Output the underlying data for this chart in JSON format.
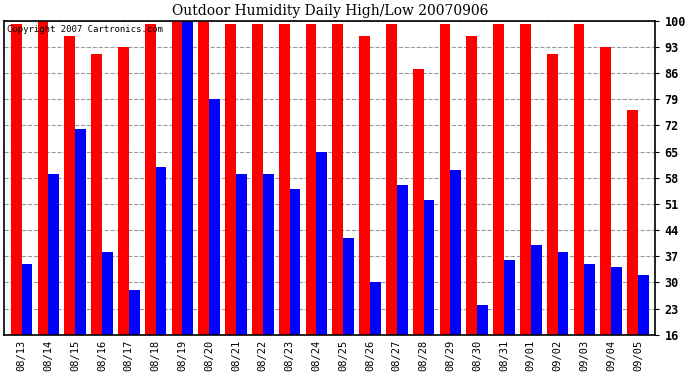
{
  "title": "Outdoor Humidity Daily High/Low 20070906",
  "copyright": "Copyright 2007 Cartronics.com",
  "dates": [
    "08/13",
    "08/14",
    "08/15",
    "08/16",
    "08/17",
    "08/18",
    "08/19",
    "08/20",
    "08/21",
    "08/22",
    "08/23",
    "08/24",
    "08/25",
    "08/26",
    "08/27",
    "08/28",
    "08/29",
    "08/30",
    "08/31",
    "09/01",
    "09/02",
    "09/03",
    "09/04",
    "09/05"
  ],
  "highs": [
    99,
    100,
    96,
    91,
    93,
    99,
    100,
    100,
    99,
    99,
    99,
    99,
    99,
    96,
    99,
    87,
    99,
    96,
    99,
    99,
    91,
    99,
    93,
    76
  ],
  "lows": [
    35,
    59,
    71,
    38,
    28,
    61,
    100,
    79,
    59,
    59,
    55,
    65,
    42,
    30,
    56,
    52,
    60,
    24,
    36,
    40,
    38,
    35,
    34,
    32
  ],
  "high_color": "#ff0000",
  "low_color": "#0000ff",
  "background_color": "#ffffff",
  "grid_color": "#999999",
  "yticks": [
    16,
    23,
    30,
    37,
    44,
    51,
    58,
    65,
    72,
    79,
    86,
    93,
    100
  ],
  "ymin": 16,
  "ymax": 100,
  "bar_width": 0.4
}
